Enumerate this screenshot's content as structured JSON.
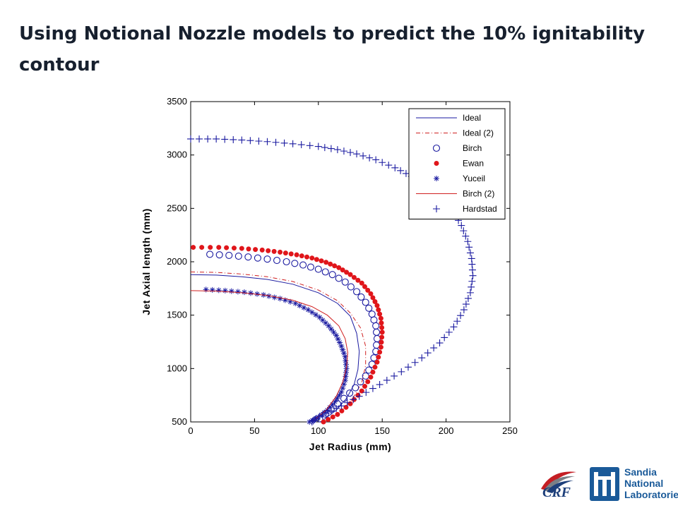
{
  "slide": {
    "title": "Using Notional Nozzle models to predict the 10% ignitability contour"
  },
  "logos": {
    "crf": "CRF",
    "sandia_line1": "Sandia",
    "sandia_line2": "National",
    "sandia_line3": "Laboratories"
  },
  "chart_data": {
    "type": "scatter",
    "title": "",
    "xlabel": "Jet Radius (mm)",
    "ylabel": "Jet Axial length (mm)",
    "xlim": [
      0,
      250
    ],
    "ylim": [
      500,
      3500
    ],
    "xticks": [
      0,
      50,
      100,
      150,
      200,
      250
    ],
    "yticks": [
      500,
      1000,
      1500,
      2000,
      2500,
      3000,
      3500
    ],
    "grid": false,
    "legend_position": "top-right",
    "series": [
      {
        "name": "Ideal",
        "style": "line",
        "color": "#1a1aa0",
        "x": [
          0,
          20,
          40,
          60,
          80,
          100,
          115,
          125,
          130,
          132,
          131,
          128,
          122,
          114,
          104
        ],
        "y": [
          1880,
          1875,
          1860,
          1835,
          1790,
          1710,
          1610,
          1490,
          1330,
          1160,
          990,
          850,
          720,
          610,
          520
        ]
      },
      {
        "name": "Ideal (2)",
        "style": "dashdot",
        "color": "#d02020",
        "x": [
          0,
          20,
          40,
          60,
          80,
          100,
          115,
          125,
          133,
          137,
          137,
          134,
          127,
          117,
          104
        ],
        "y": [
          1905,
          1900,
          1885,
          1860,
          1815,
          1735,
          1635,
          1520,
          1380,
          1210,
          1030,
          870,
          720,
          590,
          500
        ]
      },
      {
        "name": "Birch",
        "style": "circle",
        "color": "#1a1aa0",
        "x": [
          15,
          30,
          45,
          60,
          75,
          88,
          100,
          111,
          121,
          130,
          137,
          142,
          145,
          146,
          145,
          142,
          137,
          129,
          120,
          110,
          101
        ],
        "y": [
          2070,
          2060,
          2045,
          2025,
          2000,
          1970,
          1930,
          1880,
          1810,
          1720,
          1620,
          1510,
          1400,
          1280,
          1160,
          1040,
          930,
          820,
          720,
          620,
          530
        ]
      },
      {
        "name": "Ewan",
        "style": "dot",
        "color": "#e0161b",
        "x": [
          2,
          22,
          40,
          56,
          70,
          83,
          95,
          106,
          116,
          125,
          134,
          141,
          146,
          149,
          150,
          149,
          146,
          141,
          134,
          125,
          115,
          104
        ],
        "y": [
          2135,
          2135,
          2125,
          2110,
          2090,
          2065,
          2035,
          1995,
          1945,
          1880,
          1800,
          1700,
          1590,
          1470,
          1340,
          1200,
          1060,
          920,
          790,
          670,
          570,
          500
        ]
      },
      {
        "name": "Yuceil",
        "style": "star",
        "color": "#1a1aa0",
        "x": [
          12,
          27,
          42,
          57,
          70,
          82,
          92,
          101,
          108,
          114,
          118,
          121,
          122,
          121,
          118,
          113,
          107,
          100,
          93
        ],
        "y": [
          1740,
          1730,
          1715,
          1690,
          1655,
          1610,
          1550,
          1480,
          1400,
          1310,
          1210,
          1110,
          1000,
          890,
          780,
          690,
          610,
          545,
          500
        ]
      },
      {
        "name": "Birch (2)",
        "style": "line",
        "color": "#d02020",
        "x": [
          0,
          20,
          40,
          60,
          80,
          95,
          107,
          116,
          121,
          123,
          122,
          119,
          114,
          106,
          96
        ],
        "y": [
          1730,
          1725,
          1710,
          1685,
          1640,
          1580,
          1500,
          1400,
          1280,
          1150,
          1010,
          870,
          740,
          610,
          510
        ]
      },
      {
        "name": "Hardstad",
        "style": "plus",
        "color": "#1a1aa0",
        "x": [
          0,
          20,
          40,
          60,
          80,
          100,
          115,
          130,
          145,
          160,
          173,
          185,
          196,
          205,
          212,
          217,
          220,
          221,
          219,
          214,
          206,
          195,
          181,
          165,
          148,
          132,
          118,
          106,
          98,
          95
        ],
        "y": [
          3150,
          3150,
          3140,
          3125,
          3105,
          3080,
          3050,
          3010,
          2955,
          2880,
          2800,
          2710,
          2600,
          2480,
          2340,
          2190,
          2030,
          1870,
          1710,
          1550,
          1390,
          1240,
          1100,
          970,
          850,
          740,
          650,
          580,
          530,
          500
        ]
      }
    ]
  }
}
